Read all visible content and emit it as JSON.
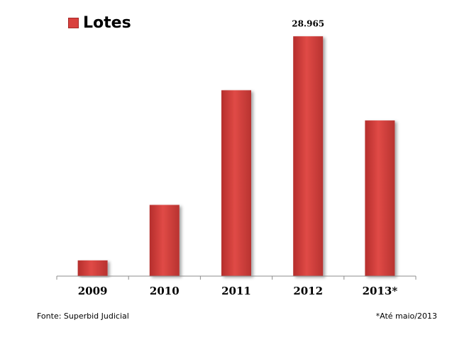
{
  "chart_data": {
    "type": "bar",
    "title": "",
    "xlabel": "",
    "ylabel": "",
    "categories": [
      "2009",
      "2010",
      "2011",
      "2012",
      "2013*"
    ],
    "series": [
      {
        "name": "Lotes",
        "values": [
          1900,
          8600,
          22450,
          28965,
          18800
        ],
        "color": "#d9403d"
      }
    ],
    "data_labels": [
      {
        "category": "2012",
        "text": "28.965"
      }
    ],
    "ylim": [
      0,
      29500
    ],
    "grid": false,
    "legend_position": "top-left"
  },
  "legend": {
    "label": "Lotes",
    "color": "#d9403d"
  },
  "source": "Fonte: Superbid Judicial",
  "footnote": "*Até maio/2013"
}
